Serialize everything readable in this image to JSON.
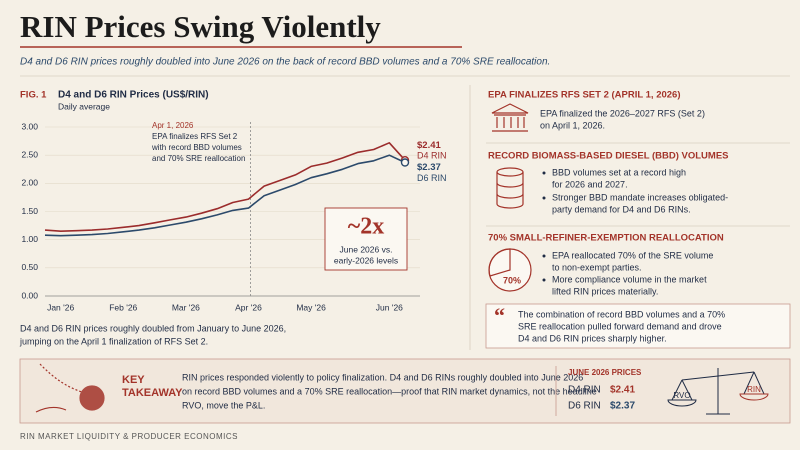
{
  "header": {
    "title": "RIN Prices Swing Violently",
    "subtitle": "D4 and D6 RIN prices roughly doubled into June 2026 on the back of record BBD volumes and a 70% SRE reallocation."
  },
  "chart_data": {
    "type": "line",
    "fig_label": "FIG. 1",
    "title": "D4 and D6 RIN Prices (US$/RIN)",
    "subtitle": "Daily average",
    "categories": [
      null,
      "Jan '26",
      null,
      null,
      null,
      "Feb '26",
      null,
      null,
      null,
      "Mar '26",
      null,
      null,
      null,
      "Apr '26",
      null,
      null,
      null,
      "May '26",
      null,
      null,
      null,
      null,
      "Jun '26",
      null
    ],
    "series": [
      {
        "name": "D4 RIN",
        "color": "#9b2c2c",
        "values": [
          1.17,
          1.15,
          1.16,
          1.17,
          1.19,
          1.22,
          1.25,
          1.3,
          1.35,
          1.4,
          1.47,
          1.55,
          1.66,
          1.72,
          1.95,
          2.05,
          2.15,
          2.3,
          2.36,
          2.45,
          2.55,
          2.6,
          2.72,
          2.41
        ],
        "value_labels": [
          null,
          null,
          null,
          null,
          null,
          null,
          null,
          null,
          null,
          null,
          null,
          null,
          null,
          null,
          null,
          null,
          null,
          null,
          null,
          null,
          null,
          null,
          null,
          "$2.41"
        ]
      },
      {
        "name": "D6 RIN",
        "color": "#2c4a6b",
        "values": [
          1.08,
          1.07,
          1.08,
          1.09,
          1.11,
          1.14,
          1.17,
          1.21,
          1.26,
          1.31,
          1.37,
          1.44,
          1.52,
          1.56,
          1.78,
          1.88,
          1.98,
          2.1,
          2.17,
          2.25,
          2.35,
          2.4,
          2.5,
          2.37
        ],
        "value_labels": [
          null,
          null,
          null,
          null,
          null,
          null,
          null,
          null,
          null,
          null,
          null,
          null,
          null,
          null,
          null,
          null,
          null,
          null,
          null,
          null,
          null,
          null,
          null,
          "$2.37"
        ]
      }
    ],
    "ylim": [
      0,
      3
    ],
    "yticks": [
      {
        "value": 0,
        "label": "0.00"
      },
      {
        "value": 0.5,
        "label": "0.50"
      },
      {
        "value": 1,
        "label": "1.00"
      },
      {
        "value": 1.5,
        "label": "1.50"
      },
      {
        "value": 2,
        "label": "2.00"
      },
      {
        "value": 2.5,
        "label": "2.50"
      },
      {
        "value": 3,
        "label": "3.00"
      }
    ],
    "grid": true,
    "annotation": [
      "Apr 1, 2026",
      "EPA finalizes RFS Set 2",
      "with record BBD volumes",
      "and 70% SRE reallocation"
    ],
    "callout": {
      "headline": "~2x",
      "lines": [
        "June 2026 vs.",
        "early-2026 levels"
      ]
    },
    "caption": [
      "D4 and D6 RIN prices roughly doubled from January to June 2026,",
      "jumping on the April 1 finalization of RFS Set 2."
    ]
  },
  "sections": [
    {
      "title": "EPA FINALIZES RFS SET 2 (APRIL 1, 2026)",
      "lines": [
        "EPA finalized the 2026–2027 RFS (Set 2)",
        "on April 1, 2026."
      ]
    },
    {
      "title": "RECORD BIOMASS-BASED DIESEL (BBD) VOLUMES",
      "bullets": [
        [
          "BBD volumes set at a record high",
          "for 2026 and 2027."
        ],
        [
          "Stronger BBD mandate increases obligated-",
          "party demand for D4 and D6 RINs."
        ]
      ]
    },
    {
      "title": "70% SMALL-REFINER-EXEMPTION REALLOCATION",
      "icon_label": "70%",
      "bullets": [
        [
          "EPA reallocated 70% of the SRE volume",
          "to non-exempt parties."
        ],
        [
          "More compliance volume in the market",
          "lifted RIN prices materially."
        ]
      ]
    }
  ],
  "quote": [
    "The combination of record BBD volumes and a 70%",
    "SRE reallocation pulled forward demand and drove",
    "D4 and D6 RIN prices sharply higher."
  ],
  "takeaway": {
    "label": [
      "KEY",
      "TAKEAWAY"
    ],
    "lines": [
      "RIN prices responded violently to policy finalization. D4 and D6 RINs roughly doubled into June 2026",
      "on record BBD volumes and a 70% SRE reallocation—proof that RIN market dynamics, not the headline",
      "RVO, move the P&L."
    ],
    "prices_title": "JUNE 2026 PRICES",
    "prices": [
      {
        "name": "D4 RIN",
        "price": "$2.41"
      },
      {
        "name": "D6 RIN",
        "price": "$2.37"
      }
    ],
    "scale_labels": [
      "RVO",
      "RIN"
    ]
  },
  "footer": "RIN MARKET LIQUIDITY & PRODUCER ECONOMICS"
}
